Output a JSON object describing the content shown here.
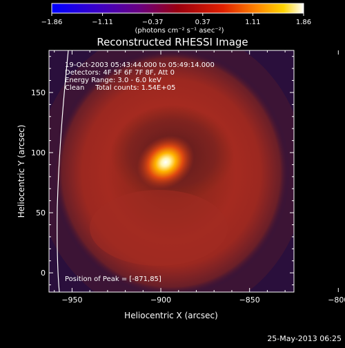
{
  "colorbar": {
    "ticks": [
      "-1.86",
      "-1.11",
      "-0.37",
      "0.37",
      "1.11",
      "1.86"
    ],
    "range": [
      -1.86,
      1.86
    ],
    "unit_label": "(photons cm⁻² s⁻¹ asec⁻²)"
  },
  "chart_data": {
    "type": "heatmap",
    "title": "Reconstructed RHESSI Image",
    "xlabel": "Heliocentric X (arcsec)",
    "ylabel": "Heliocentric Y (arcsec)",
    "xlim": [
      -963,
      -825
    ],
    "ylim": [
      -16,
      185
    ],
    "x_ticks": [
      -950,
      -900,
      -850,
      -800
    ],
    "y_ticks": [
      0,
      50,
      100,
      150
    ],
    "x_tick_labels": [
      "−950",
      "−900",
      "−850",
      "−800"
    ],
    "y_tick_labels": [
      "0",
      "50",
      "100",
      "150"
    ],
    "peak": {
      "x": -871,
      "y": 85,
      "value": 1.86
    },
    "annotations": [
      "19-Oct-2003 05:43:44.000 to 05:49:14.000",
      "Detectors: 4F 5F 6F 7F 8F, Att 0",
      "Energy Range: 3.0 - 6.0 keV",
      "Clean     Total counts: 1.54E+05"
    ],
    "peak_label": "Position of Peak = [-871,85]",
    "colormap": "hot",
    "colors": {
      "background": "#000000",
      "low": "#2a0f3c",
      "mid": "#9a2a1e",
      "high": "#ffffff"
    }
  },
  "footer": {
    "timestamp": "25-May-2013 06:25"
  }
}
